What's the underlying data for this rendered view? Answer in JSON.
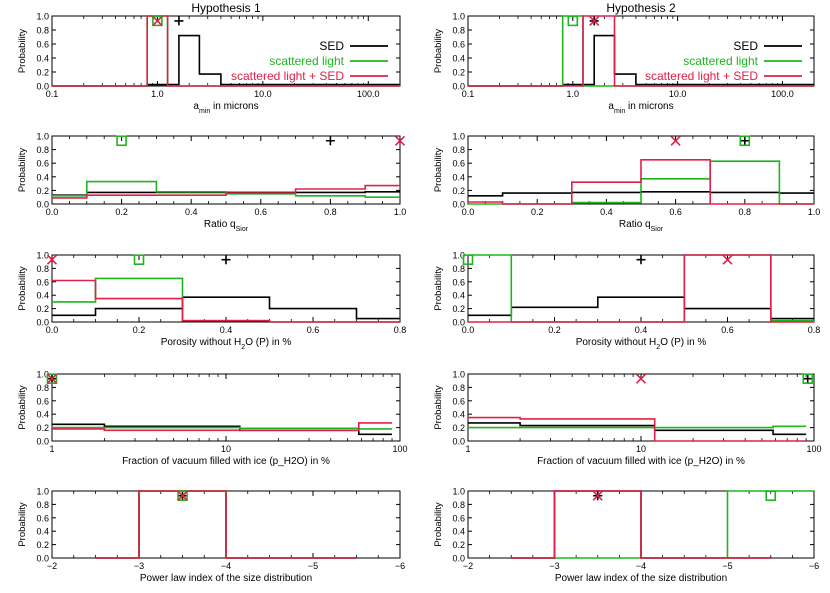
{
  "colors": {
    "sed": "#000000",
    "scattered": "#1fb51f",
    "combined": "#e0204a"
  },
  "legend_labels": [
    "SED",
    "scattered light",
    "scattered light + SED"
  ],
  "chart_data": [
    {
      "type": "line",
      "step": true,
      "title": "Hypothesis 1",
      "xlabel": "a_min in microns",
      "ylabel": "Probability",
      "xscale": "log",
      "xlim": [
        0.1,
        200
      ],
      "ylim": [
        0,
        1
      ],
      "xticks": [
        0.1,
        1.0,
        10.0,
        100.0
      ],
      "xticklabels": [
        "0.1",
        "1.0",
        "10.0",
        "100.0"
      ],
      "yticks": [
        0,
        0.2,
        0.4,
        0.6,
        0.8,
        1.0
      ],
      "yticklabels": [
        "0.0",
        "0.2",
        "0.4",
        "0.6",
        "0.8",
        "1.0"
      ],
      "legend": "top-right",
      "series": [
        {
          "name": "SED",
          "edges": [
            0.1,
            0.8,
            1.25,
            1.6,
            2.5,
            4,
            200
          ],
          "values": [
            0,
            0.02,
            0.02,
            0.72,
            0.17,
            0.02
          ]
        },
        {
          "name": "scattered light",
          "edges": [
            0.1,
            0.8,
            1.25,
            200
          ],
          "values": [
            0,
            1,
            0
          ]
        },
        {
          "name": "scattered light + SED",
          "edges": [
            0.1,
            0.8,
            1.25,
            200
          ],
          "values": [
            0,
            1,
            0
          ]
        }
      ],
      "markers": [
        {
          "series": "SED",
          "x": 1.6,
          "y": 0.93
        },
        {
          "series": "scattered light",
          "x": 1.0,
          "y": 0.93
        },
        {
          "series": "scattered light + SED",
          "x": 1.0,
          "y": 0.93
        }
      ]
    },
    {
      "type": "line",
      "step": true,
      "title": "Hypothesis 2",
      "xlabel": "a_min in microns",
      "ylabel": "Probability",
      "xscale": "log",
      "xlim": [
        0.1,
        200
      ],
      "ylim": [
        0,
        1
      ],
      "xticks": [
        0.1,
        1.0,
        10.0,
        100.0
      ],
      "xticklabels": [
        "0.1",
        "1.0",
        "10.0",
        "100.0"
      ],
      "yticks": [
        0,
        0.2,
        0.4,
        0.6,
        0.8,
        1.0
      ],
      "yticklabels": [
        "0.0",
        "0.2",
        "0.4",
        "0.6",
        "0.8",
        "1.0"
      ],
      "legend": "top-right",
      "series": [
        {
          "name": "SED",
          "edges": [
            0.1,
            0.8,
            1.25,
            1.6,
            2.5,
            4,
            200
          ],
          "values": [
            0,
            0.02,
            0.02,
            0.72,
            0.17,
            0.02
          ]
        },
        {
          "name": "scattered light",
          "edges": [
            0.1,
            0.8,
            1.25,
            200
          ],
          "values": [
            0,
            1,
            0
          ]
        },
        {
          "name": "scattered light + SED",
          "edges": [
            0.1,
            1.25,
            2.5,
            200
          ],
          "values": [
            0,
            1,
            0
          ]
        }
      ],
      "markers": [
        {
          "series": "SED",
          "x": 1.6,
          "y": 0.93
        },
        {
          "series": "scattered light",
          "x": 1.0,
          "y": 0.93
        },
        {
          "series": "scattered light + SED",
          "x": 1.6,
          "y": 0.93
        }
      ]
    },
    {
      "type": "line",
      "step": true,
      "xlabel": "Ratio q_Sior",
      "ylabel": "Probability",
      "xscale": "linear",
      "xlim": [
        0,
        1
      ],
      "ylim": [
        0,
        1
      ],
      "xticks": [
        0,
        0.2,
        0.4,
        0.6,
        0.8,
        1.0
      ],
      "xticklabels": [
        "0.0",
        "0.2",
        "0.4",
        "0.6",
        "0.8",
        "1.0"
      ],
      "yticks": [
        0,
        0.2,
        0.4,
        0.6,
        0.8,
        1.0
      ],
      "yticklabels": [
        "0.0",
        "0.2",
        "0.4",
        "0.6",
        "0.8",
        "1.0"
      ],
      "series": [
        {
          "name": "SED",
          "edges": [
            0,
            0.1,
            0.3,
            0.5,
            0.7,
            0.9,
            1.0
          ],
          "values": [
            0.13,
            0.17,
            0.17,
            0.17,
            0.17,
            0.18
          ]
        },
        {
          "name": "scattered light",
          "edges": [
            0,
            0.1,
            0.3,
            0.5,
            0.7,
            0.9,
            1.0
          ],
          "values": [
            0.12,
            0.33,
            0.18,
            0.15,
            0.12,
            0.1
          ]
        },
        {
          "name": "scattered light + SED",
          "edges": [
            0,
            0.1,
            0.3,
            0.5,
            0.7,
            0.9,
            1.0
          ],
          "values": [
            0.09,
            0.13,
            0.13,
            0.16,
            0.22,
            0.27
          ]
        }
      ],
      "markers": [
        {
          "series": "SED",
          "x": 0.8,
          "y": 0.93
        },
        {
          "series": "scattered light",
          "x": 0.2,
          "y": 0.93
        },
        {
          "series": "scattered light + SED",
          "x": 1.0,
          "y": 0.93
        }
      ]
    },
    {
      "type": "line",
      "step": true,
      "xlabel": "Ratio q_Sior",
      "ylabel": "Probability",
      "xscale": "linear",
      "xlim": [
        0,
        1
      ],
      "ylim": [
        0,
        1
      ],
      "xticks": [
        0,
        0.2,
        0.4,
        0.6,
        0.8,
        1.0
      ],
      "xticklabels": [
        "0.0",
        "0.2",
        "0.4",
        "0.6",
        "0.8",
        "1.0"
      ],
      "yticks": [
        0,
        0.2,
        0.4,
        0.6,
        0.8,
        1.0
      ],
      "yticklabels": [
        "0.0",
        "0.2",
        "0.4",
        "0.6",
        "0.8",
        "1.0"
      ],
      "series": [
        {
          "name": "SED",
          "edges": [
            0,
            0.1,
            0.3,
            0.5,
            0.7,
            0.9,
            1.0
          ],
          "values": [
            0.12,
            0.16,
            0.17,
            0.18,
            0.17,
            0.16
          ]
        },
        {
          "name": "scattered light",
          "edges": [
            0,
            0.3,
            0.5,
            0.7,
            0.9,
            1.0
          ],
          "values": [
            0,
            0.02,
            0.37,
            0.63,
            0
          ]
        },
        {
          "name": "scattered light + SED",
          "edges": [
            0,
            0.1,
            0.3,
            0.5,
            0.7,
            1.0
          ],
          "values": [
            0.03,
            0,
            0.32,
            0.65,
            0
          ]
        }
      ],
      "markers": [
        {
          "series": "SED",
          "x": 0.8,
          "y": 0.93
        },
        {
          "series": "scattered light",
          "x": 0.8,
          "y": 0.93
        },
        {
          "series": "scattered light + SED",
          "x": 0.6,
          "y": 0.93
        }
      ]
    },
    {
      "type": "line",
      "step": true,
      "xlabel": "Porosity without H2O (P) in %",
      "ylabel": "Probability",
      "xscale": "linear",
      "xlim": [
        0,
        0.8
      ],
      "ylim": [
        0,
        1
      ],
      "xticks": [
        0,
        0.2,
        0.4,
        0.6,
        0.8
      ],
      "xticklabels": [
        "0.0",
        "0.2",
        "0.4",
        "0.6",
        "0.8"
      ],
      "yticks": [
        0,
        0.2,
        0.4,
        0.6,
        0.8,
        1.0
      ],
      "yticklabels": [
        "0.0",
        "0.2",
        "0.4",
        "0.6",
        "0.8",
        "1.0"
      ],
      "series": [
        {
          "name": "SED",
          "edges": [
            0,
            0.1,
            0.3,
            0.5,
            0.7,
            0.8
          ],
          "values": [
            0.1,
            0.2,
            0.37,
            0.2,
            0.05
          ]
        },
        {
          "name": "scattered light",
          "edges": [
            0,
            0.1,
            0.3,
            0.5,
            0.8
          ],
          "values": [
            0.3,
            0.65,
            0.02,
            0
          ]
        },
        {
          "name": "scattered light + SED",
          "edges": [
            0,
            0.1,
            0.3,
            0.5,
            0.8
          ],
          "values": [
            0.62,
            0.35,
            0.02,
            0
          ]
        }
      ],
      "markers": [
        {
          "series": "SED",
          "x": 0.4,
          "y": 0.93
        },
        {
          "series": "scattered light",
          "x": 0.2,
          "y": 0.93
        },
        {
          "series": "scattered light + SED",
          "x": 0.0,
          "y": 0.93
        }
      ]
    },
    {
      "type": "line",
      "step": true,
      "xlabel": "Porosity without H2O (P) in %",
      "ylabel": "Probability",
      "xscale": "linear",
      "xlim": [
        0,
        0.8
      ],
      "ylim": [
        0,
        1
      ],
      "xticks": [
        0,
        0.2,
        0.4,
        0.6,
        0.8
      ],
      "xticklabels": [
        "0.0",
        "0.2",
        "0.4",
        "0.6",
        "0.8"
      ],
      "yticks": [
        0,
        0.2,
        0.4,
        0.6,
        0.8,
        1.0
      ],
      "yticklabels": [
        "0.0",
        "0.2",
        "0.4",
        "0.6",
        "0.8",
        "1.0"
      ],
      "series": [
        {
          "name": "SED",
          "edges": [
            0,
            0.1,
            0.3,
            0.5,
            0.7,
            0.8
          ],
          "values": [
            0.1,
            0.22,
            0.37,
            0.2,
            0.05
          ]
        },
        {
          "name": "scattered light",
          "edges": [
            0,
            0.1,
            0.5,
            0.7,
            0.8
          ],
          "values": [
            1,
            0,
            1,
            0.02
          ]
        },
        {
          "name": "scattered light + SED",
          "edges": [
            0,
            0.5,
            0.7,
            0.8
          ],
          "values": [
            0,
            1,
            0
          ]
        }
      ],
      "markers": [
        {
          "series": "SED",
          "x": 0.4,
          "y": 0.93
        },
        {
          "series": "scattered light",
          "x": 0.0,
          "y": 0.93
        },
        {
          "series": "scattered light + SED",
          "x": 0.6,
          "y": 0.93
        }
      ]
    },
    {
      "type": "line",
      "step": true,
      "xlabel": "Fraction of vacuum filled with ice (p_H2O) in %",
      "ylabel": "Probability",
      "xscale": "log",
      "xlim": [
        1,
        100
      ],
      "ylim": [
        0,
        1
      ],
      "xticks": [
        1,
        10,
        100
      ],
      "xticklabels": [
        "1",
        "10",
        "100"
      ],
      "yticks": [
        0,
        0.2,
        0.4,
        0.6,
        0.8,
        1.0
      ],
      "yticklabels": [
        "0.0",
        "0.2",
        "0.4",
        "0.6",
        "0.8",
        "1.0"
      ],
      "series": [
        {
          "name": "SED",
          "edges": [
            1,
            2,
            12,
            58,
            90
          ],
          "values": [
            0.25,
            0.22,
            0.16,
            0.1
          ]
        },
        {
          "name": "scattered light",
          "edges": [
            1,
            12,
            58,
            90
          ],
          "values": [
            0.2,
            0.19,
            0.18
          ]
        },
        {
          "name": "scattered light + SED",
          "edges": [
            1,
            2,
            12,
            58,
            90
          ],
          "values": [
            0.18,
            0.16,
            0.16,
            0.27
          ]
        }
      ],
      "markers": [
        {
          "series": "SED",
          "x": 1,
          "y": 0.93
        },
        {
          "series": "scattered light",
          "x": 1,
          "y": 0.93
        },
        {
          "series": "scattered light + SED",
          "x": 1,
          "y": 0.93
        }
      ]
    },
    {
      "type": "line",
      "step": true,
      "xlabel": "Fraction of vacuum filled with ice (p_H2O) in %",
      "ylabel": "Probability",
      "xscale": "log",
      "xlim": [
        1,
        100
      ],
      "ylim": [
        0,
        1
      ],
      "xticks": [
        1,
        10,
        100
      ],
      "xticklabels": [
        "1",
        "10",
        "100"
      ],
      "yticks": [
        0,
        0.2,
        0.4,
        0.6,
        0.8,
        1.0
      ],
      "yticklabels": [
        "0.0",
        "0.2",
        "0.4",
        "0.6",
        "0.8",
        "1.0"
      ],
      "series": [
        {
          "name": "SED",
          "edges": [
            1,
            2,
            12,
            58,
            90
          ],
          "values": [
            0.27,
            0.23,
            0.16,
            0.1
          ]
        },
        {
          "name": "scattered light",
          "edges": [
            1,
            12,
            58,
            90
          ],
          "values": [
            0.2,
            0.2,
            0.22
          ]
        },
        {
          "name": "scattered light + SED",
          "edges": [
            1,
            2,
            12,
            90
          ],
          "values": [
            0.35,
            0.33,
            0
          ]
        }
      ],
      "markers": [
        {
          "series": "SED",
          "x": 92,
          "y": 0.93
        },
        {
          "series": "scattered light",
          "x": 92,
          "y": 0.93
        },
        {
          "series": "scattered light + SED",
          "x": 10,
          "y": 0.93
        }
      ]
    },
    {
      "type": "line",
      "step": true,
      "xlabel": "Power law index of the size distribution",
      "ylabel": "Probability",
      "xscale": "linear",
      "xlim": [
        -2,
        -6
      ],
      "ylim": [
        0,
        1
      ],
      "xticks": [
        -2,
        -3,
        -4,
        -5,
        -6
      ],
      "xticklabels": [
        "−2",
        "−3",
        "−4",
        "−5",
        "−6"
      ],
      "yticks": [
        0,
        0.2,
        0.4,
        0.6,
        0.8,
        1.0
      ],
      "yticklabels": [
        "0.0",
        "0.2",
        "0.4",
        "0.6",
        "0.8",
        "1.0"
      ],
      "series": [
        {
          "name": "SED",
          "edges": [
            -2.5,
            -3,
            -4,
            -5.5
          ],
          "values": [
            0,
            1,
            0
          ]
        },
        {
          "name": "scattered light",
          "edges": [
            -2.5,
            -3,
            -4,
            -5.5
          ],
          "values": [
            0,
            1,
            0
          ]
        },
        {
          "name": "scattered light + SED",
          "edges": [
            -2.5,
            -3,
            -4,
            -5.5
          ],
          "values": [
            0,
            1,
            0
          ]
        }
      ],
      "markers": [
        {
          "series": "SED",
          "x": -3.5,
          "y": 0.93
        },
        {
          "series": "scattered light",
          "x": -3.5,
          "y": 0.93
        },
        {
          "series": "scattered light + SED",
          "x": -3.5,
          "y": 0.93
        }
      ]
    },
    {
      "type": "line",
      "step": true,
      "xlabel": "Power law index of the size distribution",
      "ylabel": "Probability",
      "xscale": "linear",
      "xlim": [
        -2,
        -6
      ],
      "ylim": [
        0,
        1
      ],
      "xticks": [
        -2,
        -3,
        -4,
        -5,
        -6
      ],
      "xticklabels": [
        "−2",
        "−3",
        "−4",
        "−5",
        "−6"
      ],
      "yticks": [
        0,
        0.2,
        0.4,
        0.6,
        0.8,
        1.0
      ],
      "yticklabels": [
        "0.0",
        "0.2",
        "0.4",
        "0.6",
        "0.8",
        "1.0"
      ],
      "series": [
        {
          "name": "SED",
          "edges": [
            -2.5,
            -3,
            -4,
            -5.5
          ],
          "values": [
            0,
            1,
            0
          ]
        },
        {
          "name": "scattered light",
          "edges": [
            -2.5,
            -5,
            -6
          ],
          "values": [
            0,
            1
          ]
        },
        {
          "name": "scattered light + SED",
          "edges": [
            -2.5,
            -3,
            -4,
            -5.5
          ],
          "values": [
            0,
            1,
            0
          ]
        }
      ],
      "markers": [
        {
          "series": "SED",
          "x": -3.5,
          "y": 0.93
        },
        {
          "series": "scattered light",
          "x": -5.5,
          "y": 0.93
        },
        {
          "series": "scattered light + SED",
          "x": -3.5,
          "y": 0.93
        }
      ]
    }
  ]
}
